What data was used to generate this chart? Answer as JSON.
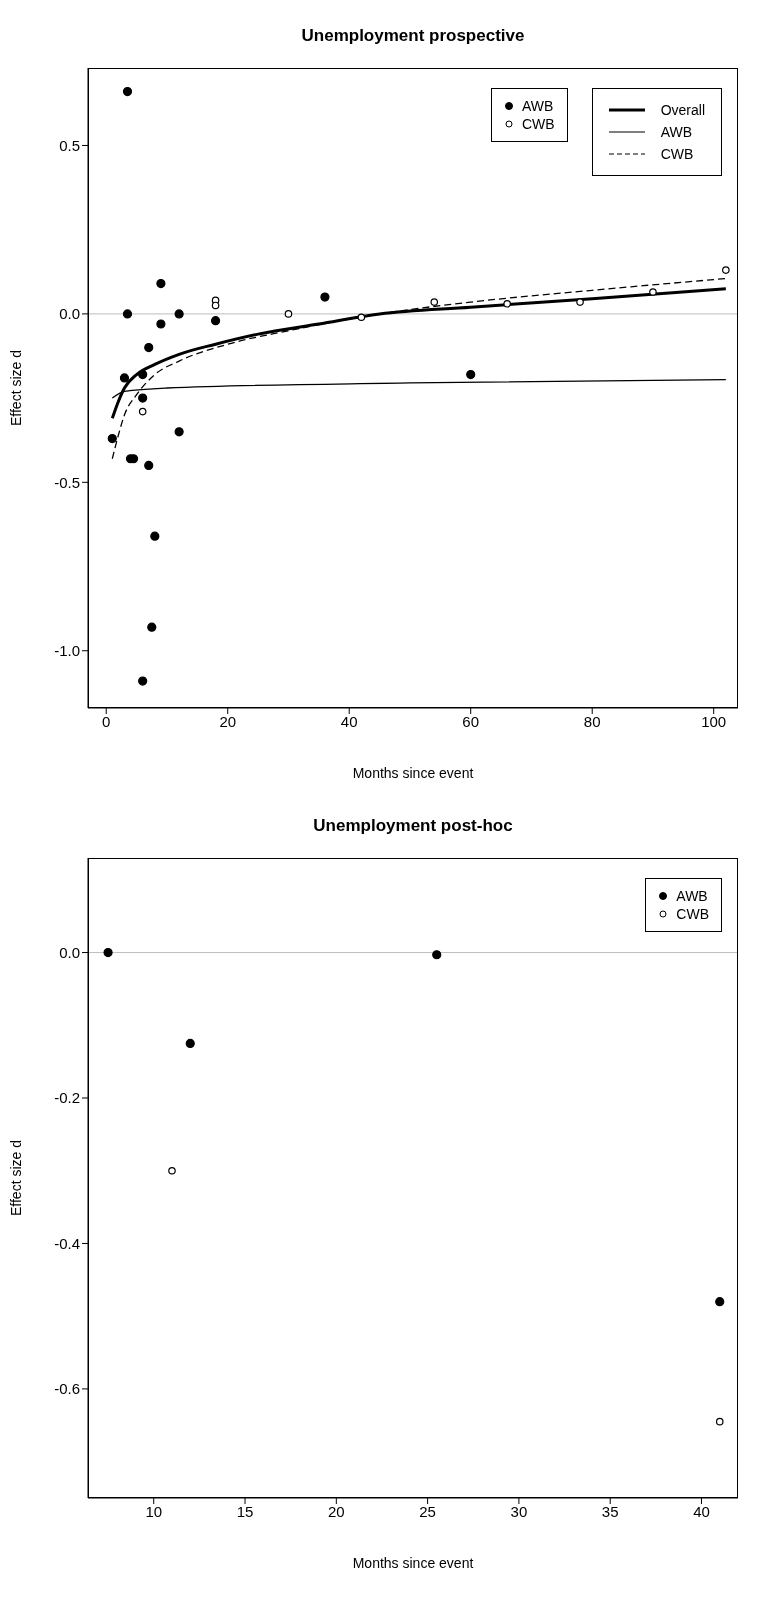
{
  "chart_data": [
    {
      "type": "scatter",
      "title": "Unemployment prospective",
      "xlabel": "Months since event",
      "ylabel": "Effect size d",
      "xlim": [
        -3,
        104
      ],
      "xticks": [
        0,
        20,
        40,
        60,
        80,
        100
      ],
      "ylim": [
        -1.17,
        0.73
      ],
      "yticks": [
        {
          "value": -1,
          "label": "-1.0"
        },
        {
          "value": -0.5,
          "label": "-0.5"
        },
        {
          "value": 0,
          "label": "0.0"
        },
        {
          "value": 0.5,
          "label": "0.5"
        }
      ],
      "grid": false,
      "legend": "top right",
      "ref_lines": [
        {
          "axis": "y",
          "value": 0,
          "color": "#bebebe"
        }
      ],
      "series": [
        {
          "name": "AWB",
          "marker": "circle",
          "color": "#000000",
          "x": [
            1,
            3.5,
            3,
            3.5,
            4,
            4.5,
            6,
            6,
            6,
            7,
            7,
            7.5,
            8,
            9,
            9,
            12,
            12,
            18,
            36,
            60
          ],
          "values": [
            -0.37,
            0.66,
            -0.19,
            0.0,
            -0.43,
            -0.43,
            -0.18,
            -0.25,
            -1.09,
            -0.1,
            -0.45,
            -0.93,
            -0.66,
            0.09,
            -0.03,
            0.0,
            -0.35,
            -0.02,
            0.05,
            -0.18
          ]
        },
        {
          "name": "CWB",
          "marker": "circle",
          "color": "#000000",
          "x": [
            6,
            18,
            18,
            30,
            42,
            54,
            66,
            78,
            90,
            102
          ],
          "values": [
            -0.29,
            0.04,
            0.025,
            0.0,
            -0.01,
            0.035,
            0.03,
            0.035,
            0.065,
            0.13
          ]
        },
        {
          "name": "Overall",
          "type": "line",
          "marker": "none",
          "line_style": "solid",
          "color": "#000000",
          "x": [
            1,
            2,
            3,
            5,
            8,
            12,
            18,
            25,
            35,
            45,
            60,
            80,
            102
          ],
          "values": [
            -0.31,
            -0.26,
            -0.22,
            -0.18,
            -0.15,
            -0.12,
            -0.09,
            -0.06,
            -0.03,
            0.0,
            0.02,
            0.045,
            0.075
          ]
        },
        {
          "name": "AWB",
          "type": "line",
          "marker": "none",
          "line_style": "solid",
          "color": "#000000",
          "x": [
            1,
            3,
            10,
            50,
            102
          ],
          "values": [
            -0.25,
            -0.23,
            -0.22,
            -0.205,
            -0.195
          ]
        },
        {
          "name": "CWB",
          "type": "line",
          "marker": "none",
          "line_style": "dashed",
          "color": "#000000",
          "x": [
            1,
            2,
            3,
            5,
            8,
            12,
            20,
            30,
            45,
            60,
            80,
            102
          ],
          "values": [
            -0.43,
            -0.36,
            -0.3,
            -0.24,
            -0.18,
            -0.14,
            -0.09,
            -0.05,
            0.0,
            0.035,
            0.07,
            0.105
          ]
        }
      ]
    },
    {
      "type": "scatter",
      "title": "Unemployment post-hoc",
      "xlabel": "Months since event",
      "ylabel": "Effect size d",
      "xlim": [
        6.4,
        42
      ],
      "xticks": [
        10,
        15,
        20,
        25,
        30,
        35,
        40
      ],
      "ylim": [
        -0.75,
        0.13
      ],
      "yticks": [
        {
          "value": -0.6,
          "label": "-0.6"
        },
        {
          "value": -0.4,
          "label": "-0.4"
        },
        {
          "value": -0.2,
          "label": "-0.2"
        },
        {
          "value": 0,
          "label": "0.0"
        }
      ],
      "grid": false,
      "legend": "top right",
      "ref_lines": [
        {
          "axis": "y",
          "value": 0,
          "color": "#bebebe"
        }
      ],
      "series": [
        {
          "name": "AWB",
          "marker": "circle",
          "color": "#000000",
          "x": [
            7.5,
            12,
            25.5,
            41
          ],
          "values": [
            0.0,
            -0.125,
            -0.003,
            -0.48
          ]
        },
        {
          "name": "CWB",
          "marker": "circle",
          "color": "#000000",
          "x": [
            11,
            41
          ],
          "values": [
            -0.3,
            -0.645
          ]
        }
      ]
    }
  ]
}
